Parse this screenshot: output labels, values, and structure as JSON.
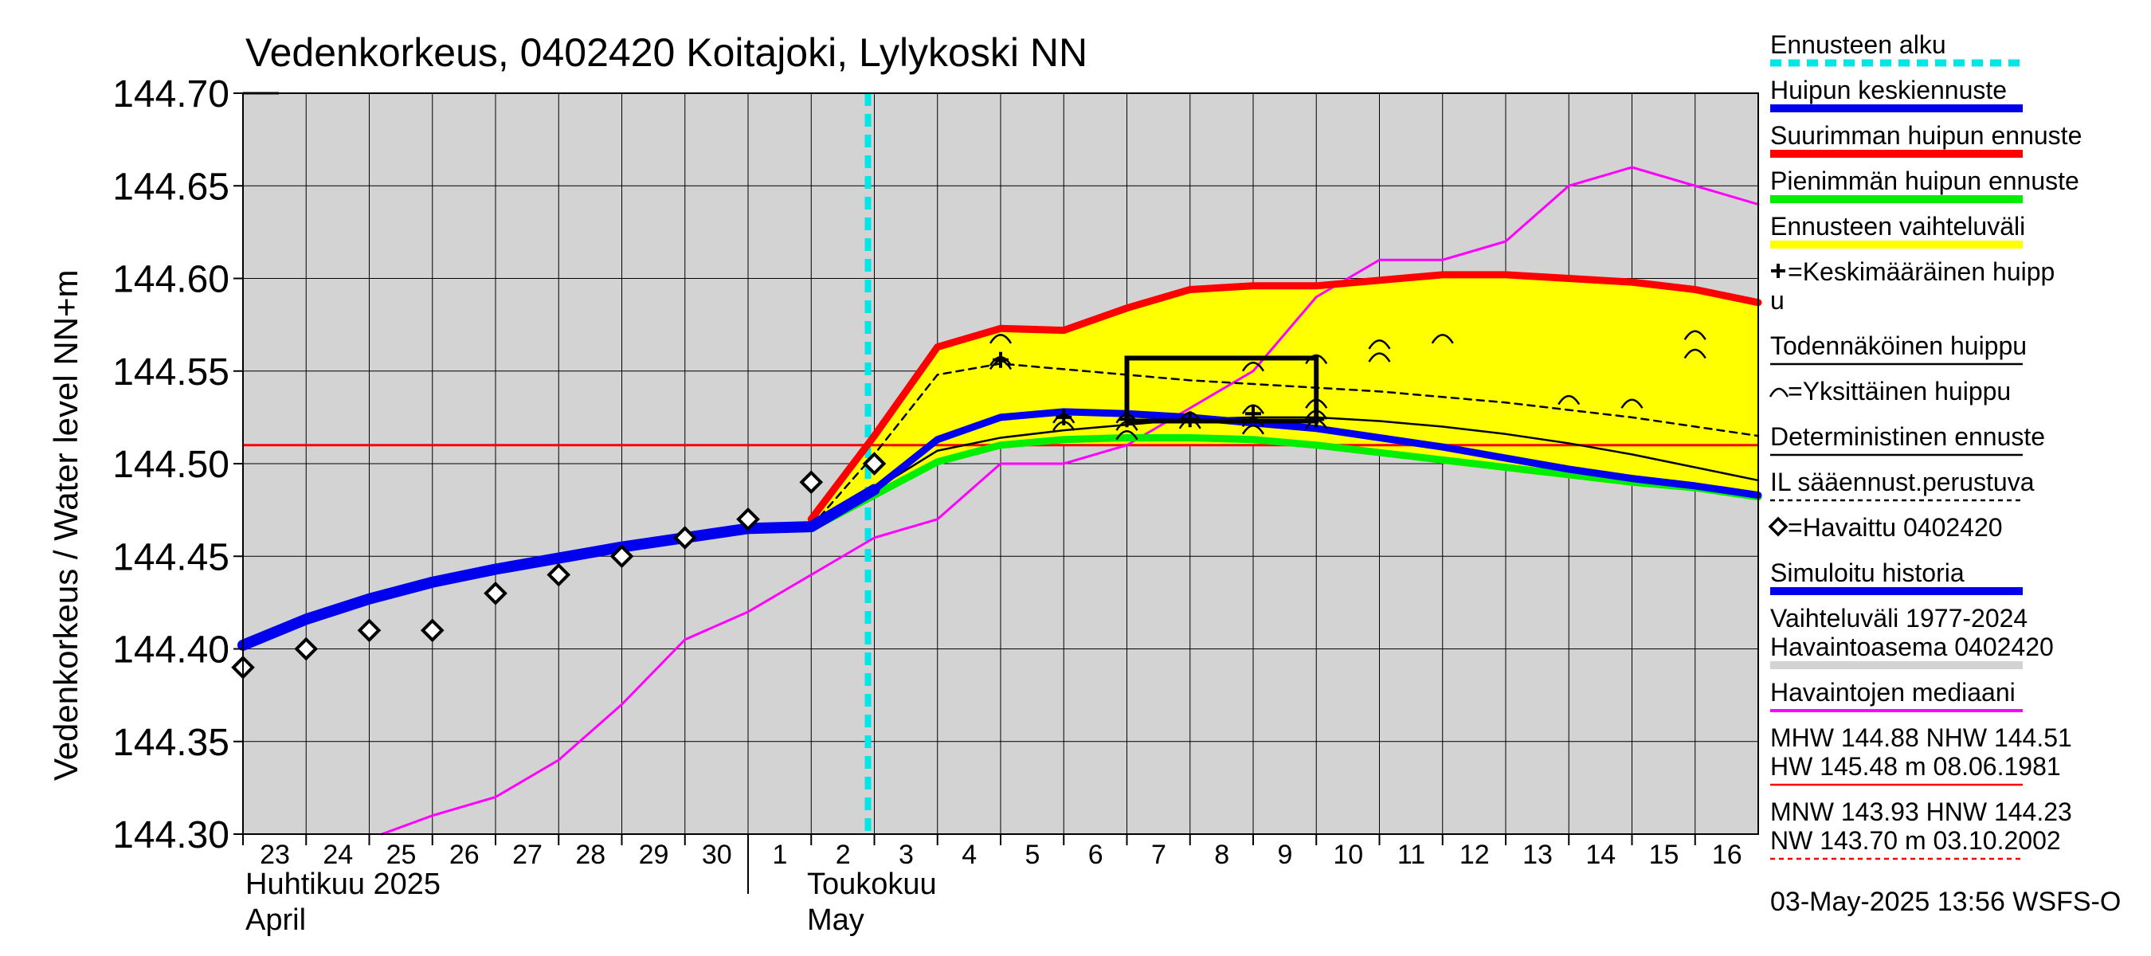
{
  "chart_data": {
    "type": "line",
    "title": "Vedenkorkeus, 0402420 Koitajoki, Lylykoski NN",
    "ylabel": "Vedenkorkeus / Water level   NN+m",
    "ylim": [
      144.3,
      144.7
    ],
    "y_ticks": [
      144.3,
      144.35,
      144.4,
      144.45,
      144.5,
      144.55,
      144.6,
      144.65,
      144.7
    ],
    "y_tick_labels": [
      "144.30",
      "144.35",
      "144.40",
      "144.45",
      "144.50",
      "144.55",
      "144.60",
      "144.65",
      "144.70"
    ],
    "x_range_days": [
      0,
      24
    ],
    "day_labels": [
      {
        "d": 0,
        "label": "23"
      },
      {
        "d": 1,
        "label": "24"
      },
      {
        "d": 2,
        "label": "25"
      },
      {
        "d": 3,
        "label": "26"
      },
      {
        "d": 4,
        "label": "27"
      },
      {
        "d": 5,
        "label": "28"
      },
      {
        "d": 6,
        "label": "29"
      },
      {
        "d": 7,
        "label": "30"
      },
      {
        "d": 8,
        "label": "1"
      },
      {
        "d": 9,
        "label": "2"
      },
      {
        "d": 10,
        "label": "3"
      },
      {
        "d": 11,
        "label": "4"
      },
      {
        "d": 12,
        "label": "5"
      },
      {
        "d": 13,
        "label": "6"
      },
      {
        "d": 14,
        "label": "7"
      },
      {
        "d": 15,
        "label": "8"
      },
      {
        "d": 16,
        "label": "9"
      },
      {
        "d": 17,
        "label": "10"
      },
      {
        "d": 18,
        "label": "11"
      },
      {
        "d": 19,
        "label": "12"
      },
      {
        "d": 20,
        "label": "13"
      },
      {
        "d": 21,
        "label": "14"
      },
      {
        "d": 22,
        "label": "15"
      },
      {
        "d": 23,
        "label": "16"
      }
    ],
    "month_labels": {
      "april_fi": "Huhtikuu  2025",
      "april_en": "April",
      "may_fi": "Toukokuu",
      "may_en": "May"
    },
    "month_boundary_day": 8,
    "forecast_start_day": 10,
    "reference_line": {
      "name": "NHW",
      "value": 144.51,
      "color": "#ff0000"
    },
    "forecast_band": {
      "color": "#ffff00",
      "x": [
        9,
        10,
        11,
        12,
        13,
        14,
        15,
        16,
        17,
        18,
        19,
        20,
        21,
        22,
        23,
        24
      ],
      "upper": [
        144.47,
        144.515,
        144.563,
        144.573,
        144.572,
        144.584,
        144.594,
        144.596,
        144.596,
        144.599,
        144.602,
        144.602,
        144.6,
        144.598,
        144.594,
        144.587
      ],
      "lower": [
        144.465,
        144.483,
        144.5,
        144.509,
        144.51,
        144.51,
        144.51,
        144.51,
        144.51,
        144.505,
        144.5,
        144.496,
        144.492,
        144.488,
        144.485,
        144.481
      ]
    },
    "series": [
      {
        "name": "Havaintojen mediaani",
        "color": "#ff00ff",
        "width": 3,
        "x": [
          2.2,
          3,
          4,
          5,
          6,
          7,
          8,
          9,
          10,
          11,
          12,
          13,
          14,
          15,
          16,
          17,
          18,
          19,
          20,
          21,
          22,
          23,
          24
        ],
        "y": [
          144.3,
          144.31,
          144.32,
          144.34,
          144.37,
          144.405,
          144.42,
          144.44,
          144.46,
          144.47,
          144.5,
          144.5,
          144.51,
          144.53,
          144.55,
          144.59,
          144.61,
          144.61,
          144.62,
          144.65,
          144.66,
          144.65,
          144.64
        ]
      },
      {
        "name": "Suurimman huipun ennuste",
        "color": "#ff0000",
        "width": 9,
        "x": [
          9,
          10,
          11,
          12,
          13,
          14,
          15,
          16,
          17,
          18,
          19,
          20,
          21,
          22,
          23,
          24
        ],
        "y": [
          144.47,
          144.515,
          144.563,
          144.573,
          144.572,
          144.584,
          144.594,
          144.596,
          144.596,
          144.599,
          144.602,
          144.602,
          144.6,
          144.598,
          144.594,
          144.587
        ]
      },
      {
        "name": "Pienimmän huipun ennuste",
        "color": "#00ee00",
        "width": 9,
        "x": [
          9,
          10,
          11,
          12,
          13,
          14,
          15,
          16,
          17,
          18,
          19,
          20,
          21,
          22,
          23,
          24
        ],
        "y": [
          144.465,
          144.483,
          144.501,
          144.51,
          144.513,
          144.514,
          144.514,
          144.513,
          144.51,
          144.506,
          144.502,
          144.498,
          144.494,
          144.49,
          144.487,
          144.482
        ]
      },
      {
        "name": "IL sääennust.perustuva",
        "color": "#000000",
        "width": 2.5,
        "dash": "9,7",
        "x": [
          9,
          10,
          11,
          12,
          13,
          14,
          15,
          16,
          17,
          18,
          19,
          20,
          21,
          22,
          23,
          24
        ],
        "y": [
          144.466,
          144.505,
          144.548,
          144.554,
          144.551,
          144.548,
          144.545,
          144.543,
          144.541,
          144.539,
          144.536,
          144.533,
          144.529,
          144.525,
          144.52,
          144.515
        ]
      },
      {
        "name": "Deterministinen ennuste",
        "color": "#000000",
        "width": 2.5,
        "x": [
          9,
          10,
          11,
          12,
          13,
          14,
          15,
          16,
          17,
          18,
          19,
          20,
          21,
          22,
          23,
          24
        ],
        "y": [
          144.466,
          144.486,
          144.507,
          144.514,
          144.518,
          144.521,
          144.524,
          144.525,
          144.525,
          144.523,
          144.52,
          144.516,
          144.511,
          144.505,
          144.498,
          144.491
        ]
      },
      {
        "name": "Huipun keskiennuste",
        "color": "#0000ee",
        "width": 9,
        "x": [
          9,
          10,
          11,
          12,
          13,
          14,
          15,
          16,
          17,
          18,
          19,
          20,
          21,
          22,
          23,
          24
        ],
        "y": [
          144.466,
          144.486,
          144.513,
          144.525,
          144.528,
          144.527,
          144.525,
          144.522,
          144.519,
          144.514,
          144.509,
          144.503,
          144.497,
          144.492,
          144.488,
          144.483
        ]
      },
      {
        "name": "Simuloitu historia",
        "color": "#0000ee",
        "width": 14,
        "x": [
          0,
          1,
          2,
          3,
          4,
          5,
          6,
          7,
          8,
          9,
          10
        ],
        "y": [
          144.402,
          144.416,
          144.427,
          144.436,
          144.443,
          144.449,
          144.455,
          144.46,
          144.465,
          144.466,
          144.486
        ]
      }
    ],
    "observed": {
      "name": "Havaittu 0402420",
      "x": [
        0,
        1,
        2,
        3,
        4,
        5,
        6,
        7,
        8,
        9,
        10
      ],
      "y": [
        144.39,
        144.4,
        144.41,
        144.41,
        144.43,
        144.44,
        144.45,
        144.46,
        144.47,
        144.49,
        144.5
      ]
    },
    "peak_box": {
      "x0": 14,
      "x1": 17,
      "y0": 144.523,
      "y1": 144.557
    },
    "mean_peaks": [
      {
        "x": 12,
        "y": 144.556
      },
      {
        "x": 13,
        "y": 144.525
      },
      {
        "x": 14,
        "y": 144.524
      },
      {
        "x": 15,
        "y": 144.524
      },
      {
        "x": 16,
        "y": 144.527
      },
      {
        "x": 17,
        "y": 144.524
      }
    ],
    "single_peaks": [
      {
        "x": 12,
        "y": 144.568
      },
      {
        "x": 12,
        "y": 144.556
      },
      {
        "x": 12,
        "y": 144.554
      },
      {
        "x": 13,
        "y": 144.525
      },
      {
        "x": 13,
        "y": 144.521
      },
      {
        "x": 14,
        "y": 144.525
      },
      {
        "x": 14,
        "y": 144.521
      },
      {
        "x": 14,
        "y": 144.516
      },
      {
        "x": 15,
        "y": 144.526
      },
      {
        "x": 15,
        "y": 144.522
      },
      {
        "x": 16,
        "y": 144.553
      },
      {
        "x": 16,
        "y": 144.53
      },
      {
        "x": 16,
        "y": 144.523
      },
      {
        "x": 16,
        "y": 144.519
      },
      {
        "x": 17,
        "y": 144.557
      },
      {
        "x": 17,
        "y": 144.533
      },
      {
        "x": 17,
        "y": 144.527
      },
      {
        "x": 17,
        "y": 144.522
      },
      {
        "x": 18,
        "y": 144.565
      },
      {
        "x": 18,
        "y": 144.558
      },
      {
        "x": 19,
        "y": 144.568
      },
      {
        "x": 21,
        "y": 144.535
      },
      {
        "x": 22,
        "y": 144.533
      },
      {
        "x": 23,
        "y": 144.57
      },
      {
        "x": 23,
        "y": 144.56
      }
    ],
    "legend": [
      {
        "label": "Ennusteen alku",
        "color": "#00e5e5",
        "style": "dash"
      },
      {
        "label": "Huipun keskiennuste",
        "color": "#0000ee",
        "style": "thick"
      },
      {
        "label": "Suurimman huipun ennuste",
        "color": "#ff0000",
        "style": "thick"
      },
      {
        "label": "Pienimmän huipun ennuste",
        "color": "#00ee00",
        "style": "thick"
      },
      {
        "label": "Ennusteen vaihteluväli",
        "color": "#ffff00",
        "style": "thick"
      },
      {
        "label": "=Keskimääräinen huipp",
        "label2": "u",
        "color": "#000000",
        "style": "none"
      },
      {
        "label": "Todennäköinen huippu",
        "color": "#000000",
        "style": "thin"
      },
      {
        "label": "=Yksittäinen huippu",
        "color": "#000000",
        "style": "none"
      },
      {
        "label": "Deterministinen ennuste",
        "color": "#000000",
        "style": "thin"
      },
      {
        "label": "IL sääennust.perustuva",
        "color": "#000000",
        "style": "dotted"
      },
      {
        "label": "=Havaittu 0402420",
        "color": "#000000",
        "style": "none"
      },
      {
        "label": "Simuloitu historia",
        "color": "#0000ee",
        "style": "thick"
      },
      {
        "label": "Vaihteluväli 1977-2024",
        "label2": " Havaintoasema 0402420",
        "color": "#d3d3d3",
        "style": "thick"
      },
      {
        "label": "Havaintojen mediaani",
        "color": "#ff00ff",
        "style": "medium"
      },
      {
        "label": "MHW 144.88 NHW 144.51",
        "label2": "HW 145.48 m 08.06.1981",
        "color": "#ff0000",
        "style": "thin"
      },
      {
        "label": "MNW 143.93 HNW 144.23",
        "label2": "NW 143.70 m 03.10.2002",
        "color": "#ff0000",
        "style": "dotted"
      }
    ],
    "footer": "03-May-2025 13:56 WSFS-O"
  }
}
